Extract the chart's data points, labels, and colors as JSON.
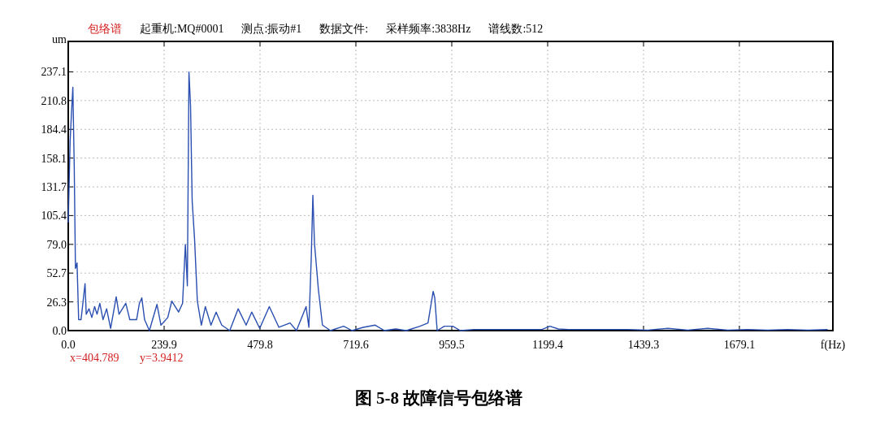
{
  "chart_data": {
    "type": "line",
    "title": "图 5-8 故障信号包络谱",
    "ylabel": "um",
    "xlabel": "f(Hz)",
    "annotations": [
      "包络谱",
      "起重机:MQ#0001",
      "测点:振动#1",
      "数据文件:",
      "采样频率:3838Hz",
      "谱线数:512",
      "x=404.789",
      "y=3.9412"
    ],
    "xlim": [
      0,
      1913
    ],
    "ylim": [
      0,
      265
    ],
    "xticks": [
      {
        "value": 0,
        "label": "0.0"
      },
      239.9,
      479.8,
      719.6,
      959.5,
      1199.4,
      1439.3,
      1679.1
    ],
    "yticks": [
      {
        "value": 0,
        "label": "0.0"
      },
      26.3,
      52.7,
      {
        "value": 79,
        "label": "79.0"
      },
      105.4,
      131.7,
      158.1,
      184.4,
      210.8,
      237.1
    ],
    "grid": true,
    "marker": "none",
    "line_style": "solid",
    "series": [
      {
        "color": "#2a4fb0",
        "x": [
          0,
          4.7,
          8,
          11.5,
          15,
          18,
          22,
          26,
          32,
          42,
          45,
          52,
          59,
          66,
          72,
          79,
          87,
          96,
          106,
          120,
          127,
          144,
          154,
          171,
          178,
          184,
          191,
          203,
          222,
          232,
          249,
          259,
          276,
          286,
          293,
          298,
          302,
          306,
          310,
          316,
          323,
          333,
          343,
          357,
          370,
          384,
          404,
          425,
          445,
          459,
          479,
          503,
          527,
          555,
          571,
          595,
          602,
          608,
          612,
          616,
          626,
          636,
          656,
          689,
          710,
          738,
          768,
          791,
          819,
          846,
          880,
          900,
          913,
          917,
          923,
          941,
          962,
          981,
          1015,
          1049,
          1084,
          1118,
          1157,
          1185,
          1205,
          1226,
          1252,
          1287,
          1354,
          1400,
          1450,
          1500,
          1550,
          1600,
          1650,
          1700,
          1750,
          1800,
          1850,
          1900
        ],
        "values": [
          99,
          174,
          199,
          223,
          149,
          57,
          62,
          10,
          10,
          43,
          15,
          20,
          12,
          22,
          15,
          25,
          10,
          20,
          2,
          31,
          15,
          25,
          10,
          10,
          25,
          30,
          10,
          0,
          24,
          5,
          12,
          27,
          17,
          25,
          79,
          41,
          237,
          206,
          119,
          84,
          27,
          5,
          22,
          5,
          17,
          5,
          0,
          20,
          5,
          17,
          2,
          22,
          3,
          7,
          0,
          22,
          3,
          67,
          124,
          80,
          37,
          5,
          0,
          4,
          0,
          3,
          5,
          0,
          1.5,
          0,
          4,
          7,
          36,
          30,
          0,
          4,
          4,
          0,
          1,
          1,
          1,
          1,
          1,
          1,
          4,
          1.5,
          1,
          1,
          1,
          1,
          0.5,
          2,
          0.5,
          2,
          0.5,
          1,
          0.5,
          1,
          0.5,
          1
        ]
      }
    ]
  }
}
